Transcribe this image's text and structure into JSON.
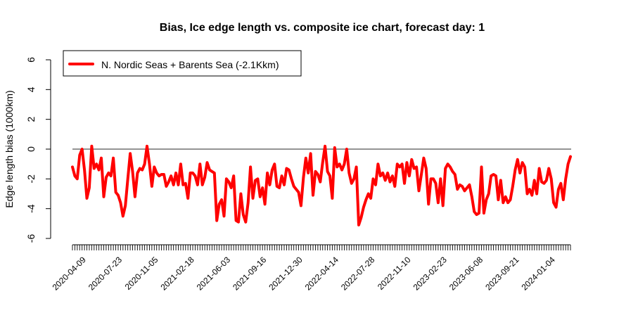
{
  "chart_data": {
    "type": "line",
    "title": "Bias, Ice edge length vs. composite ice chart, forecast day: 1",
    "xlabel": "",
    "ylabel": "Edge length bias (1000km)",
    "ylim": [
      -6,
      6
    ],
    "yticks": [
      -6,
      -4,
      -2,
      0,
      2,
      4,
      6
    ],
    "x_start": "2020-03-16",
    "x_end": "2024-03-06",
    "xtick_labels": [
      "2020-04-09",
      "2020-07-23",
      "2020-11-05",
      "2021-02-18",
      "2021-06-03",
      "2021-09-16",
      "2021-12-30",
      "2022-04-14",
      "2022-07-28",
      "2022-11-10",
      "2023-02-23",
      "2023-06-08",
      "2023-09-21",
      "2024-01-04"
    ],
    "zero_line": true,
    "grid": false,
    "legend": {
      "position": "top-left",
      "entries": [
        "N. Nordic Seas + Barents Sea (-2.1Kkm)"
      ]
    },
    "series": [
      {
        "name": "N. Nordic Seas + Barents Sea (-2.1Kkm)",
        "color": "#ff0000",
        "points": [
          [
            "2020-03-16",
            -1.2
          ],
          [
            "2020-03-23",
            -1.8
          ],
          [
            "2020-03-30",
            -2.0
          ],
          [
            "2020-04-06",
            -0.4
          ],
          [
            "2020-04-13",
            0.0
          ],
          [
            "2020-04-20",
            -1.4
          ],
          [
            "2020-04-27",
            -3.3
          ],
          [
            "2020-05-04",
            -2.6
          ],
          [
            "2020-05-11",
            0.2
          ],
          [
            "2020-05-18",
            -1.3
          ],
          [
            "2020-05-25",
            -1.0
          ],
          [
            "2020-06-01",
            -1.4
          ],
          [
            "2020-06-08",
            -0.6
          ],
          [
            "2020-06-15",
            -3.2
          ],
          [
            "2020-06-22",
            -1.9
          ],
          [
            "2020-06-29",
            -1.6
          ],
          [
            "2020-07-06",
            -1.8
          ],
          [
            "2020-07-13",
            -0.6
          ],
          [
            "2020-07-20",
            -2.9
          ],
          [
            "2020-07-27",
            -3.1
          ],
          [
            "2020-08-03",
            -3.6
          ],
          [
            "2020-08-10",
            -4.5
          ],
          [
            "2020-08-17",
            -3.8
          ],
          [
            "2020-08-24",
            -2.0
          ],
          [
            "2020-08-31",
            -0.3
          ],
          [
            "2020-09-07",
            -1.5
          ],
          [
            "2020-09-14",
            -3.2
          ],
          [
            "2020-09-21",
            -1.6
          ],
          [
            "2020-09-28",
            -1.3
          ],
          [
            "2020-10-05",
            -1.4
          ],
          [
            "2020-10-12",
            -1.0
          ],
          [
            "2020-10-19",
            0.2
          ],
          [
            "2020-10-26",
            -1.0
          ],
          [
            "2020-11-02",
            -2.5
          ],
          [
            "2020-11-09",
            -1.2
          ],
          [
            "2020-11-16",
            -1.6
          ],
          [
            "2020-11-23",
            -1.8
          ],
          [
            "2020-11-30",
            -1.7
          ],
          [
            "2020-12-07",
            -1.7
          ],
          [
            "2020-12-14",
            -2.5
          ],
          [
            "2020-12-21",
            -2.2
          ],
          [
            "2020-12-28",
            -1.8
          ],
          [
            "2021-01-04",
            -2.4
          ],
          [
            "2021-01-11",
            -1.6
          ],
          [
            "2021-01-18",
            -2.4
          ],
          [
            "2021-01-25",
            -1.0
          ],
          [
            "2021-02-01",
            -2.4
          ],
          [
            "2021-02-08",
            -2.3
          ],
          [
            "2021-02-15",
            -3.3
          ],
          [
            "2021-02-22",
            -1.6
          ],
          [
            "2021-03-01",
            -1.6
          ],
          [
            "2021-03-08",
            -1.8
          ],
          [
            "2021-03-15",
            -2.4
          ],
          [
            "2021-03-22",
            -1.0
          ],
          [
            "2021-03-29",
            -2.4
          ],
          [
            "2021-04-05",
            -1.9
          ],
          [
            "2021-04-12",
            -0.9
          ],
          [
            "2021-04-19",
            -1.4
          ],
          [
            "2021-04-26",
            -1.5
          ],
          [
            "2021-05-03",
            -1.6
          ],
          [
            "2021-05-10",
            -4.8
          ],
          [
            "2021-05-17",
            -3.7
          ],
          [
            "2021-05-24",
            -3.4
          ],
          [
            "2021-05-31",
            -4.5
          ],
          [
            "2021-06-07",
            -2.0
          ],
          [
            "2021-06-14",
            -2.2
          ],
          [
            "2021-06-21",
            -2.6
          ],
          [
            "2021-06-28",
            -1.8
          ],
          [
            "2021-07-05",
            -4.8
          ],
          [
            "2021-07-12",
            -4.9
          ],
          [
            "2021-07-19",
            -3.0
          ],
          [
            "2021-07-26",
            -4.4
          ],
          [
            "2021-08-02",
            -4.9
          ],
          [
            "2021-08-09",
            -3.6
          ],
          [
            "2021-08-16",
            -1.2
          ],
          [
            "2021-08-23",
            -3.3
          ],
          [
            "2021-08-30",
            -2.1
          ],
          [
            "2021-09-06",
            -2.0
          ],
          [
            "2021-09-13",
            -3.2
          ],
          [
            "2021-09-20",
            -2.6
          ],
          [
            "2021-09-27",
            -3.7
          ],
          [
            "2021-10-04",
            -1.6
          ],
          [
            "2021-10-11",
            -2.4
          ],
          [
            "2021-10-18",
            -1.4
          ],
          [
            "2021-10-25",
            -1.0
          ],
          [
            "2021-11-01",
            -2.5
          ],
          [
            "2021-11-08",
            -2.6
          ],
          [
            "2021-11-15",
            -1.8
          ],
          [
            "2021-11-22",
            -2.4
          ],
          [
            "2021-11-29",
            -1.3
          ],
          [
            "2021-12-06",
            -1.4
          ],
          [
            "2021-12-13",
            -2.0
          ],
          [
            "2021-12-20",
            -2.5
          ],
          [
            "2021-12-27",
            -2.7
          ],
          [
            "2022-01-03",
            -2.9
          ],
          [
            "2022-01-10",
            -3.8
          ],
          [
            "2022-01-17",
            -1.9
          ],
          [
            "2022-01-24",
            -0.6
          ],
          [
            "2022-01-31",
            -1.6
          ],
          [
            "2022-02-07",
            -0.3
          ],
          [
            "2022-02-14",
            -3.1
          ],
          [
            "2022-02-21",
            -1.5
          ],
          [
            "2022-02-28",
            -1.7
          ],
          [
            "2022-03-07",
            -2.2
          ],
          [
            "2022-03-14",
            -0.9
          ],
          [
            "2022-03-21",
            0.2
          ],
          [
            "2022-03-28",
            -1.5
          ],
          [
            "2022-04-04",
            -1.8
          ],
          [
            "2022-04-11",
            -3.3
          ],
          [
            "2022-04-18",
            0.1
          ],
          [
            "2022-04-25",
            -1.2
          ],
          [
            "2022-05-02",
            -1.0
          ],
          [
            "2022-05-09",
            -1.4
          ],
          [
            "2022-05-16",
            -1.0
          ],
          [
            "2022-05-23",
            0.0
          ],
          [
            "2022-05-30",
            -1.6
          ],
          [
            "2022-06-06",
            -2.3
          ],
          [
            "2022-06-13",
            -2.0
          ],
          [
            "2022-06-20",
            -1.2
          ],
          [
            "2022-06-27",
            -5.1
          ],
          [
            "2022-07-04",
            -4.6
          ],
          [
            "2022-07-11",
            -3.9
          ],
          [
            "2022-07-18",
            -3.4
          ],
          [
            "2022-07-25",
            -3.0
          ],
          [
            "2022-08-01",
            -3.3
          ],
          [
            "2022-08-08",
            -2.0
          ],
          [
            "2022-08-15",
            -2.4
          ],
          [
            "2022-08-22",
            -1.0
          ],
          [
            "2022-08-29",
            -1.8
          ],
          [
            "2022-09-05",
            -1.6
          ],
          [
            "2022-09-12",
            -2.1
          ],
          [
            "2022-09-19",
            -1.6
          ],
          [
            "2022-09-26",
            -2.2
          ],
          [
            "2022-10-03",
            -1.8
          ],
          [
            "2022-10-10",
            -2.5
          ],
          [
            "2022-10-17",
            -1.0
          ],
          [
            "2022-10-24",
            -1.2
          ],
          [
            "2022-10-31",
            -1.0
          ],
          [
            "2022-11-07",
            -2.3
          ],
          [
            "2022-11-14",
            -0.9
          ],
          [
            "2022-11-21",
            -1.8
          ],
          [
            "2022-11-28",
            -0.7
          ],
          [
            "2022-12-05",
            -1.3
          ],
          [
            "2022-12-12",
            -1.2
          ],
          [
            "2022-12-19",
            -2.8
          ],
          [
            "2022-12-26",
            -1.7
          ],
          [
            "2023-01-02",
            -0.6
          ],
          [
            "2023-01-09",
            -1.3
          ],
          [
            "2023-01-16",
            -3.7
          ],
          [
            "2023-01-23",
            -2.0
          ],
          [
            "2023-01-30",
            -2.0
          ],
          [
            "2023-02-06",
            -2.3
          ],
          [
            "2023-02-13",
            -3.6
          ],
          [
            "2023-02-20",
            -2.0
          ],
          [
            "2023-02-27",
            -3.8
          ],
          [
            "2023-03-06",
            -1.3
          ],
          [
            "2023-03-13",
            -1.0
          ],
          [
            "2023-03-20",
            -1.2
          ],
          [
            "2023-03-27",
            -1.5
          ],
          [
            "2023-04-03",
            -1.7
          ],
          [
            "2023-04-10",
            -2.7
          ],
          [
            "2023-04-17",
            -2.4
          ],
          [
            "2023-04-24",
            -2.5
          ],
          [
            "2023-05-01",
            -2.8
          ],
          [
            "2023-05-08",
            -2.6
          ],
          [
            "2023-05-15",
            -2.4
          ],
          [
            "2023-05-22",
            -3.2
          ],
          [
            "2023-05-29",
            -4.2
          ],
          [
            "2023-06-05",
            -4.4
          ],
          [
            "2023-06-12",
            -4.3
          ],
          [
            "2023-06-19",
            -1.2
          ],
          [
            "2023-06-26",
            -4.3
          ],
          [
            "2023-07-03",
            -3.4
          ],
          [
            "2023-07-10",
            -3.0
          ],
          [
            "2023-07-17",
            -1.8
          ],
          [
            "2023-07-24",
            -1.7
          ],
          [
            "2023-07-31",
            -1.8
          ],
          [
            "2023-08-07",
            -3.4
          ],
          [
            "2023-08-14",
            -2.1
          ],
          [
            "2023-08-21",
            -3.6
          ],
          [
            "2023-08-28",
            -3.2
          ],
          [
            "2023-09-04",
            -3.6
          ],
          [
            "2023-09-11",
            -3.4
          ],
          [
            "2023-09-18",
            -2.5
          ],
          [
            "2023-09-25",
            -1.4
          ],
          [
            "2023-10-02",
            -0.7
          ],
          [
            "2023-10-09",
            -1.6
          ],
          [
            "2023-10-16",
            -0.9
          ],
          [
            "2023-10-23",
            -1.2
          ],
          [
            "2023-10-30",
            -3.0
          ],
          [
            "2023-11-06",
            -2.7
          ],
          [
            "2023-11-13",
            -3.1
          ],
          [
            "2023-11-20",
            -2.1
          ],
          [
            "2023-11-27",
            -3.0
          ],
          [
            "2023-12-04",
            -1.3
          ],
          [
            "2023-12-11",
            -2.2
          ],
          [
            "2023-12-18",
            -2.3
          ],
          [
            "2023-12-25",
            -2.1
          ],
          [
            "2024-01-01",
            -1.3
          ],
          [
            "2024-01-08",
            -2.0
          ],
          [
            "2024-01-15",
            -3.6
          ],
          [
            "2024-01-22",
            -3.9
          ],
          [
            "2024-01-29",
            -2.7
          ],
          [
            "2024-02-05",
            -2.3
          ],
          [
            "2024-02-12",
            -3.4
          ],
          [
            "2024-02-19",
            -2.0
          ],
          [
            "2024-02-26",
            -1.0
          ],
          [
            "2024-03-04",
            -0.5
          ]
        ]
      }
    ]
  }
}
